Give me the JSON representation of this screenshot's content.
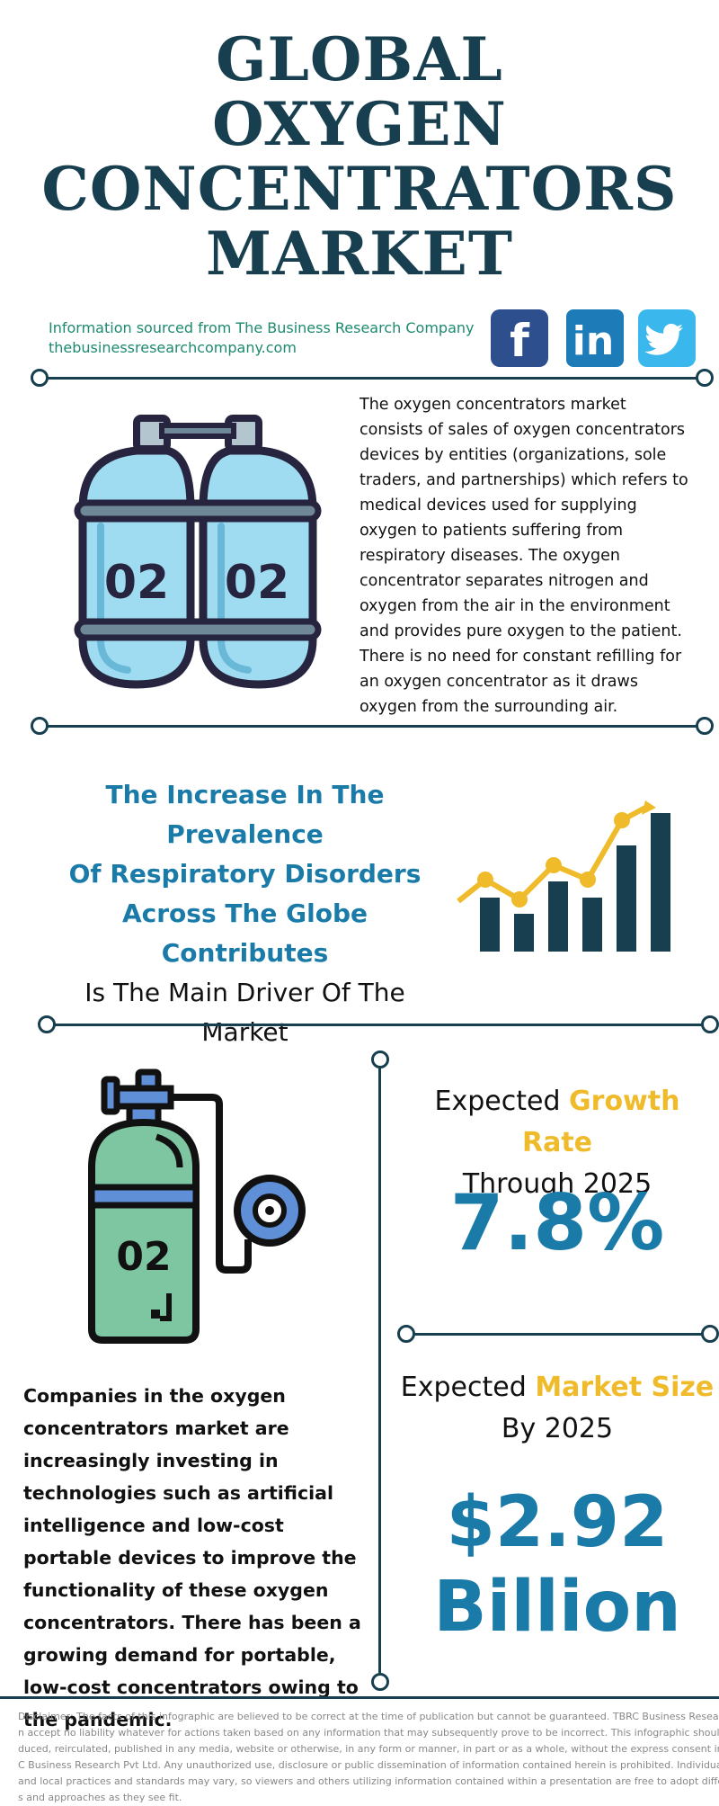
{
  "header": {
    "title_lines": [
      "GLOBAL",
      "OXYGEN",
      "CONCENTRATORS",
      "MARKET"
    ],
    "source_line": "Information sourced from The Business Research Company",
    "source_url": "thebusinessresearchcompany.com"
  },
  "social": {
    "facebook_glyph": "f",
    "linkedin_glyph": "in",
    "linkedin_tm": "™",
    "icons": [
      "facebook-icon",
      "linkedin-icon",
      "twitter-icon"
    ]
  },
  "intro": {
    "cylinder_label": "02",
    "description": "The oxygen concentrators market consists of sales of oxygen concentrators devices by entities (organizations, sole traders, and partnerships) which refers to medical devices used for supplying oxygen to patients suffering from respiratory diseases. The oxygen concentrator separates nitrogen and oxygen from the air in the environment and provides pure oxygen to the patient. There is no need for constant refilling for an oxygen concentrator as it draws oxygen from the surrounding air."
  },
  "driver": {
    "highlight_lines": [
      "The Increase In The Prevalence",
      "Of Respiratory Disorders",
      "Across The Globe Contributes"
    ],
    "normal_lines": [
      "Is The Main Driver Of The",
      "Market"
    ]
  },
  "growth": {
    "label_prefix": "Expected ",
    "label_accent": "Growth Rate",
    "label_line2": "Through 2025",
    "value": "7.8%"
  },
  "market_size": {
    "label_prefix": "Expected ",
    "label_accent": "Market Size",
    "label_line2": "By 2025",
    "value_line1": "$2.92",
    "value_line2": "Billion"
  },
  "companies": {
    "cylinder_label": "02",
    "text": "Companies in the oxygen concentrators market are increasingly investing in technologies such as artificial intelligence and low-cost portable devices to improve the functionality of these oxygen concentrators. There has been a growing demand for portable, low-cost concentrators owing to the pandemic."
  },
  "disclaimer": {
    "lines": [
      "Disclaimer: The facts of this infographic are believed to be correct at the time of publication but cannot be guaranteed. TBRC Business Research Pvt Ltd c",
      "n accept no liability whatever for actions taken based on any information that may subsequently prove to be incorrect. This infographic should not be repr",
      "duced, reirculated, published in any media, website or otherwise, in any form or manner, in part or as a whole, without the express consent in writing of TB",
      "C Business Research Pvt Ltd. Any unauthorized use, disclosure or public dissemination of information contained herein is prohibited. Individual situations",
      "and local practices and standards may vary, so viewers and others utilizing information contained within a presentation are free to adopt differing standar",
      "s and approaches as they see fit."
    ]
  },
  "colors": {
    "navy": "#173f4f",
    "blue": "#1a7ba8",
    "gold": "#f0bb2b",
    "green_text": "#1d8a6f"
  }
}
